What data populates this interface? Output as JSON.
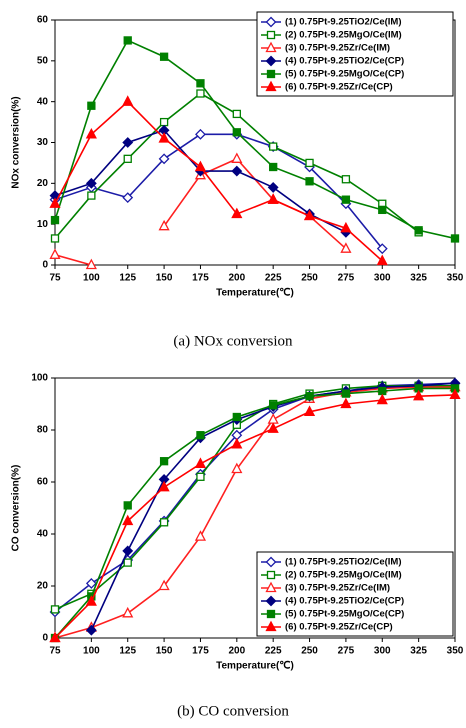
{
  "chart_data": [
    {
      "type": "line",
      "caption": "(a)  NOx  conversion",
      "xlabel": "Temperature(℃)",
      "ylabel": "NOx conversion(%)",
      "x": [
        75,
        100,
        125,
        150,
        175,
        200,
        225,
        250,
        275,
        300,
        325,
        350
      ],
      "xlim": [
        75,
        350
      ],
      "xticks": [
        75,
        100,
        125,
        150,
        175,
        200,
        225,
        250,
        275,
        300,
        325,
        350
      ],
      "ylim": [
        0,
        60
      ],
      "yticks": [
        0,
        10,
        20,
        30,
        40,
        50,
        60
      ],
      "grid": false,
      "legend": "upper right",
      "series": [
        {
          "name": "(1) 0.75Pt-9.25TiO2/Ce(IM)",
          "color": "#1c1ca8",
          "marker": "diamond",
          "filled": false,
          "values": [
            16,
            19,
            16.5,
            26,
            32,
            32,
            29,
            24,
            15,
            4,
            null,
            null
          ]
        },
        {
          "name": "(2) 0.75Pt-9.25MgO/Ce(IM)",
          "color": "#008000",
          "marker": "square",
          "filled": false,
          "values": [
            6.5,
            17,
            26,
            35,
            42,
            37,
            29,
            25,
            21,
            15,
            8,
            null
          ]
        },
        {
          "name": "(3) 0.75Pt-9.25Zr/Ce(IM)",
          "color": "#ff2020",
          "marker": "triangle",
          "filled": false,
          "values": [
            2.5,
            0,
            null,
            9.5,
            22,
            26,
            16,
            12,
            4,
            null,
            null,
            null
          ]
        },
        {
          "name": "(4) 0.75Pt-9.25TiO2/Ce(CP)",
          "color": "#000080",
          "marker": "diamond",
          "filled": true,
          "values": [
            17,
            20,
            30,
            33,
            23,
            23,
            19,
            12.5,
            8,
            null,
            null,
            null
          ]
        },
        {
          "name": "(5) 0.75Pt-9.25MgO/Ce(CP)",
          "color": "#008000",
          "marker": "square",
          "filled": true,
          "values": [
            11,
            39,
            55,
            51,
            44.5,
            32.5,
            24,
            20.5,
            16,
            13.5,
            8.5,
            6.5
          ]
        },
        {
          "name": "(6) 0.75Pt-9.25Zr/Ce(CP)",
          "color": "#ff0000",
          "marker": "triangle",
          "filled": true,
          "values": [
            15,
            32,
            40,
            31,
            24,
            12.5,
            16,
            12,
            9,
            1,
            null,
            null
          ]
        }
      ]
    },
    {
      "type": "line",
      "caption": "(b)  CO  conversion",
      "xlabel": "Temperature(℃)",
      "ylabel": "CO conversion(%)",
      "x": [
        75,
        100,
        125,
        150,
        175,
        200,
        225,
        250,
        275,
        300,
        325,
        350
      ],
      "xlim": [
        75,
        350
      ],
      "xticks": [
        75,
        100,
        125,
        150,
        175,
        200,
        225,
        250,
        275,
        300,
        325,
        350
      ],
      "ylim": [
        0,
        100
      ],
      "yticks": [
        0,
        20,
        40,
        60,
        80,
        100
      ],
      "grid": false,
      "legend": "lower right",
      "series": [
        {
          "name": "(1) 0.75Pt-9.25TiO2/Ce(IM)",
          "color": "#1c1ca8",
          "marker": "diamond",
          "filled": false,
          "values": [
            10,
            21,
            30,
            45,
            63,
            78,
            88,
            93,
            95,
            97,
            97.5,
            98
          ]
        },
        {
          "name": "(2) 0.75Pt-9.25MgO/Ce(IM)",
          "color": "#008000",
          "marker": "square",
          "filled": false,
          "values": [
            11,
            17,
            29,
            44.5,
            62,
            82,
            90,
            94,
            96,
            97,
            97,
            97
          ]
        },
        {
          "name": "(3) 0.75Pt-9.25Zr/Ce(IM)",
          "color": "#ff2020",
          "marker": "triangle",
          "filled": false,
          "values": [
            0,
            4,
            9.5,
            20,
            39,
            65,
            84,
            92,
            94.5,
            96,
            96.5,
            96.5
          ]
        },
        {
          "name": "(4) 0.75Pt-9.25TiO2/Ce(CP)",
          "color": "#000080",
          "marker": "diamond",
          "filled": true,
          "values": [
            null,
            3,
            33.5,
            61,
            77,
            84,
            89,
            93,
            95,
            96.5,
            97,
            98
          ]
        },
        {
          "name": "(5) 0.75Pt-9.25MgO/Ce(CP)",
          "color": "#008000",
          "marker": "square",
          "filled": true,
          "values": [
            0,
            16,
            51,
            68,
            78,
            85,
            89.5,
            93,
            94,
            95,
            96,
            96
          ]
        },
        {
          "name": "(6) 0.75Pt-9.25Zr/Ce(CP)",
          "color": "#ff0000",
          "marker": "triangle",
          "filled": true,
          "values": [
            0,
            14,
            45,
            58,
            67,
            74.5,
            80.5,
            87,
            90,
            91.5,
            93,
            93.5
          ]
        }
      ]
    }
  ]
}
